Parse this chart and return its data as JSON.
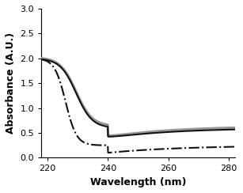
{
  "xlabel": "Wavelength (nm)",
  "ylabel": "Absorbance (A.U.)",
  "xlim": [
    218,
    282
  ],
  "ylim": [
    0,
    3.0
  ],
  "xticks": [
    220,
    240,
    260,
    280
  ],
  "yticks": [
    0,
    0.5,
    1.0,
    1.5,
    2.0,
    2.5,
    3.0
  ],
  "background_color": "#ffffff",
  "line_grey": {
    "color": "#999999",
    "lw": 2.2,
    "style": "solid"
  },
  "line_black_solid": {
    "color": "#111111",
    "lw": 1.5,
    "style": "solid"
  },
  "line_black_dashed": {
    "color": "#111111",
    "lw": 1.5,
    "style": "dashdot"
  }
}
